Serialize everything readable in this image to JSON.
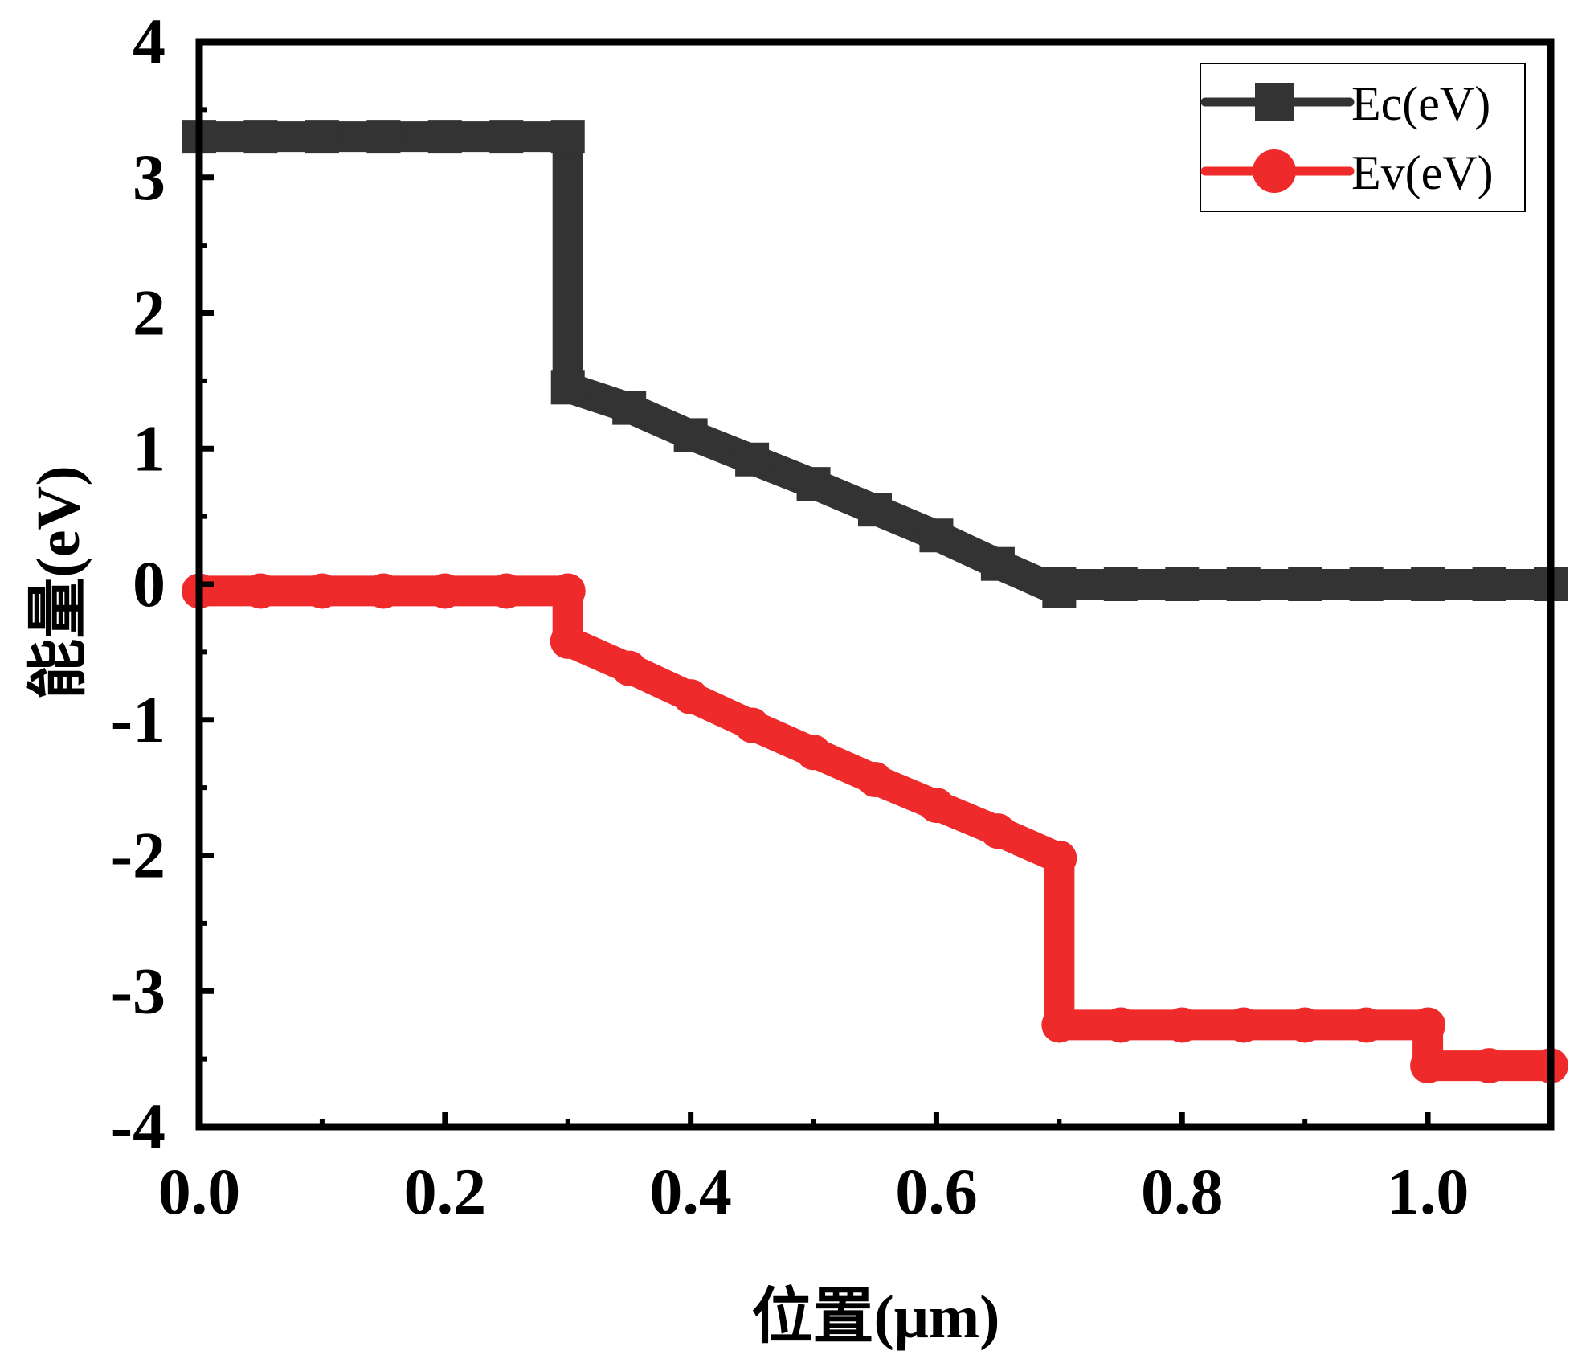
{
  "chart_data": {
    "type": "line",
    "title": "",
    "xlabel": "位置(μm)",
    "ylabel": "能量(eV)",
    "xlim": [
      0.0,
      1.1
    ],
    "ylim": [
      -4,
      4
    ],
    "x_ticks": [
      "0.0",
      "0.2",
      "0.4",
      "0.6",
      "0.8",
      "1.0"
    ],
    "x_tick_values": [
      0.0,
      0.2,
      0.4,
      0.6,
      0.8,
      1.0
    ],
    "y_ticks": [
      "4",
      "3",
      "2",
      "1",
      "0",
      "-1",
      "-2",
      "-3",
      "-4"
    ],
    "y_tick_values": [
      4,
      3,
      2,
      1,
      0,
      -1,
      -2,
      -3,
      -4
    ],
    "grid": false,
    "legend_position": "top-right",
    "series": [
      {
        "name": "Ec(eV)",
        "color": "#333333",
        "marker": "square",
        "points": [
          [
            0.0,
            3.3
          ],
          [
            0.05,
            3.3
          ],
          [
            0.1,
            3.3
          ],
          [
            0.15,
            3.3
          ],
          [
            0.2,
            3.3
          ],
          [
            0.25,
            3.3
          ],
          [
            0.3,
            3.3
          ],
          [
            0.3,
            1.45
          ],
          [
            0.35,
            1.3
          ],
          [
            0.4,
            1.1
          ],
          [
            0.45,
            0.92
          ],
          [
            0.5,
            0.74
          ],
          [
            0.55,
            0.55
          ],
          [
            0.6,
            0.36
          ],
          [
            0.65,
            0.15
          ],
          [
            0.7,
            -0.05
          ],
          [
            0.7,
            0.0
          ],
          [
            0.75,
            0.0
          ],
          [
            0.8,
            0.0
          ],
          [
            0.85,
            0.0
          ],
          [
            0.9,
            0.0
          ],
          [
            0.95,
            0.0
          ],
          [
            1.0,
            0.0
          ],
          [
            1.05,
            0.0
          ],
          [
            1.1,
            0.0
          ]
        ]
      },
      {
        "name": "Ev(eV)",
        "color": "#ee2a2a",
        "marker": "circle",
        "points": [
          [
            0.0,
            -0.05
          ],
          [
            0.05,
            -0.05
          ],
          [
            0.1,
            -0.05
          ],
          [
            0.15,
            -0.05
          ],
          [
            0.2,
            -0.05
          ],
          [
            0.25,
            -0.05
          ],
          [
            0.3,
            -0.05
          ],
          [
            0.3,
            -0.42
          ],
          [
            0.35,
            -0.62
          ],
          [
            0.4,
            -0.83
          ],
          [
            0.45,
            -1.04
          ],
          [
            0.5,
            -1.24
          ],
          [
            0.55,
            -1.44
          ],
          [
            0.6,
            -1.63
          ],
          [
            0.65,
            -1.82
          ],
          [
            0.7,
            -2.02
          ],
          [
            0.7,
            -3.25
          ],
          [
            0.75,
            -3.25
          ],
          [
            0.8,
            -3.25
          ],
          [
            0.85,
            -3.25
          ],
          [
            0.9,
            -3.25
          ],
          [
            0.95,
            -3.25
          ],
          [
            1.0,
            -3.25
          ],
          [
            1.0,
            -3.55
          ],
          [
            1.05,
            -3.55
          ],
          [
            1.1,
            -3.55
          ]
        ]
      }
    ]
  }
}
